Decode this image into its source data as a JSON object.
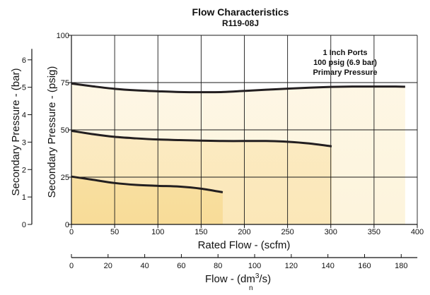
{
  "chart_data": {
    "type": "area",
    "title": "Flow Characteristics",
    "subtitle": "R119-08J",
    "annotation": [
      "1 Inch Ports",
      "100 psig (6.9 bar)",
      "Primary Pressure"
    ],
    "xlabel": "Rated Flow - (scfm)",
    "xlim": [
      0,
      400
    ],
    "xticks": [
      0,
      50,
      100,
      150,
      200,
      250,
      300,
      350,
      400
    ],
    "ylabel": "Secondary Pressure - (psig)",
    "ylim": [
      0,
      100
    ],
    "yticks": [
      0,
      25,
      50,
      75,
      100
    ],
    "secondary_y": {
      "label": "Secondary Pressure - (bar)",
      "ticks": [
        0,
        1,
        2,
        3,
        4,
        5,
        6
      ]
    },
    "secondary_x": {
      "label_main": "Flow - (dm",
      "label_sup": "3",
      "label_sub": "n",
      "label_end": "/s)",
      "ticks": [
        0,
        20,
        40,
        60,
        80,
        100,
        120,
        140,
        160,
        180
      ],
      "max_value": 188.8
    },
    "grid": true,
    "series": [
      {
        "values_x": [
          0,
          25,
          50,
          75,
          100,
          125,
          150,
          175,
          200,
          225,
          250,
          275,
          300,
          325,
          350,
          375,
          386
        ],
        "values_y": [
          74.5,
          73,
          71.7,
          70.9,
          70.4,
          70,
          69.9,
          70,
          70.6,
          71.2,
          71.8,
          72.3,
          72.7,
          72.9,
          72.9,
          72.9,
          72.8
        ]
      },
      {
        "values_x": [
          0,
          25,
          50,
          75,
          100,
          125,
          150,
          175,
          200,
          225,
          250,
          275,
          301
        ],
        "values_y": [
          49.5,
          47.7,
          46.3,
          45.5,
          44.9,
          44.6,
          44.3,
          44.1,
          44.1,
          44.1,
          43.7,
          42.8,
          41.3
        ]
      },
      {
        "values_x": [
          0,
          25,
          50,
          75,
          100,
          125,
          150,
          175
        ],
        "values_y": [
          25.3,
          23.6,
          21.9,
          20.9,
          20.4,
          20,
          18.9,
          17
        ]
      }
    ],
    "fill_colors": [
      "#fdf4dc",
      "#fbe7b8",
      "#f8dc98"
    ],
    "line_color": "#231f20"
  }
}
